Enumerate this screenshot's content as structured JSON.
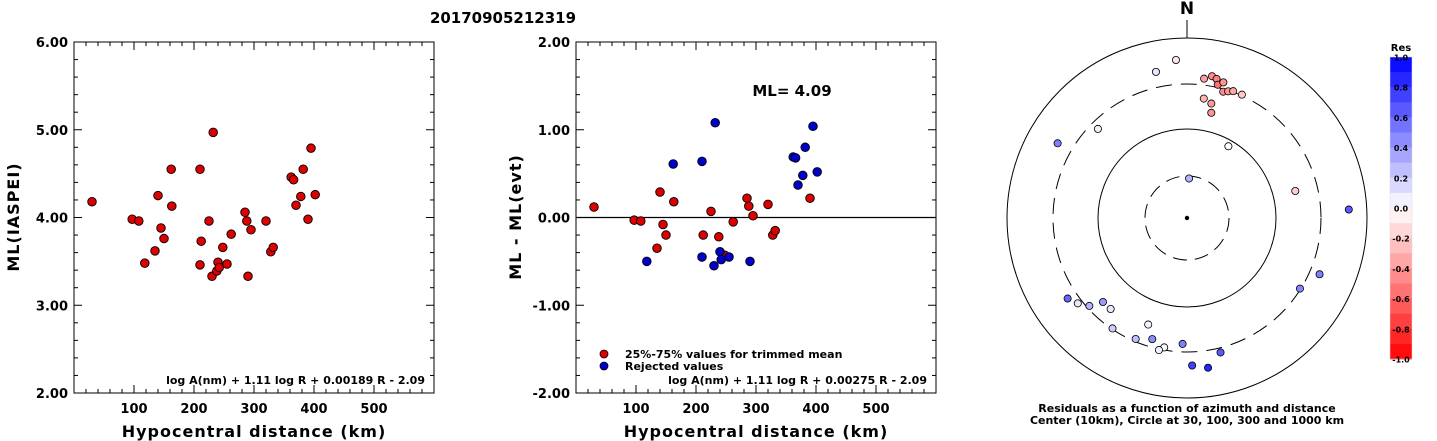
{
  "title": "20170905212319",
  "chart_data": [
    {
      "type": "scatter",
      "xlabel": "Hypocentral distance (km)",
      "ylabel": "ML(IASPEI)",
      "xlim": [
        0,
        600
      ],
      "ylim": [
        2.0,
        6.0
      ],
      "xticks": [
        "100",
        "200",
        "300",
        "400",
        "500"
      ],
      "yticks": [
        "2.00",
        "3.00",
        "4.00",
        "5.00",
        "6.00"
      ],
      "formula": "log A(nm) + 1.11 log R + 0.00189 R - 2.09",
      "series": [
        {
          "color": "#dd0000",
          "points": [
            [
              30,
              4.18
            ],
            [
              97,
              3.98
            ],
            [
              108,
              3.96
            ],
            [
              118,
              3.48
            ],
            [
              135,
              3.62
            ],
            [
              140,
              4.25
            ],
            [
              145,
              3.88
            ],
            [
              150,
              3.76
            ],
            [
              162,
              4.55
            ],
            [
              163,
              4.13
            ],
            [
              210,
              4.55
            ],
            [
              212,
              3.73
            ],
            [
              210,
              3.46
            ],
            [
              225,
              3.96
            ],
            [
              232,
              4.97
            ],
            [
              230,
              3.33
            ],
            [
              238,
              3.39
            ],
            [
              240,
              3.49
            ],
            [
              242,
              3.43
            ],
            [
              248,
              3.66
            ],
            [
              255,
              3.47
            ],
            [
              262,
              3.81
            ],
            [
              285,
              4.06
            ],
            [
              288,
              3.96
            ],
            [
              290,
              3.33
            ],
            [
              295,
              3.86
            ],
            [
              320,
              3.96
            ],
            [
              328,
              3.61
            ],
            [
              332,
              3.66
            ],
            [
              362,
              4.46
            ],
            [
              366,
              4.43
            ],
            [
              370,
              4.14
            ],
            [
              378,
              4.24
            ],
            [
              382,
              4.55
            ],
            [
              390,
              3.98
            ],
            [
              395,
              4.79
            ],
            [
              402,
              4.26
            ]
          ]
        }
      ]
    },
    {
      "type": "scatter",
      "xlabel": "Hypocentral distance (km)",
      "ylabel": "ML - ML(evt)",
      "xlim": [
        0,
        600
      ],
      "ylim": [
        -2.0,
        2.0
      ],
      "xticks": [
        "100",
        "200",
        "300",
        "400",
        "500"
      ],
      "yticks": [
        "-2.00",
        "-1.00",
        "0.00",
        "1.00",
        "2.00"
      ],
      "annotation": "ML= 4.09",
      "formula": "log A(nm) + 1.11 log R + 0.00275 R - 2.09",
      "legend": [
        {
          "color": "#dd0000",
          "label": "25%-75% values for trimmed mean"
        },
        {
          "color": "#0000cc",
          "label": "Rejected values"
        }
      ],
      "series": [
        {
          "color": "#dd0000",
          "points": [
            [
              30,
              0.12
            ],
            [
              97,
              -0.03
            ],
            [
              108,
              -0.04
            ],
            [
              135,
              -0.35
            ],
            [
              140,
              0.29
            ],
            [
              145,
              -0.08
            ],
            [
              150,
              -0.2
            ],
            [
              163,
              0.18
            ],
            [
              212,
              -0.2
            ],
            [
              225,
              0.07
            ],
            [
              238,
              -0.22
            ],
            [
              248,
              -0.43
            ],
            [
              262,
              -0.05
            ],
            [
              285,
              0.22
            ],
            [
              288,
              0.13
            ],
            [
              295,
              0.02
            ],
            [
              320,
              0.15
            ],
            [
              328,
              -0.2
            ],
            [
              332,
              -0.15
            ],
            [
              390,
              0.22
            ]
          ]
        },
        {
          "color": "#0000cc",
          "points": [
            [
              118,
              -0.5
            ],
            [
              162,
              0.61
            ],
            [
              210,
              0.64
            ],
            [
              210,
              -0.45
            ],
            [
              230,
              -0.55
            ],
            [
              232,
              1.08
            ],
            [
              240,
              -0.39
            ],
            [
              242,
              -0.48
            ],
            [
              255,
              -0.45
            ],
            [
              290,
              -0.5
            ],
            [
              362,
              0.69
            ],
            [
              366,
              0.68
            ],
            [
              370,
              0.37
            ],
            [
              378,
              0.48
            ],
            [
              382,
              0.8
            ],
            [
              395,
              1.04
            ],
            [
              402,
              0.52
            ]
          ]
        }
      ]
    },
    {
      "type": "polar",
      "north_label": "N",
      "caption_line1": "Residuals as a function of azimuth and distance",
      "caption_line2": "Center (10km), Circle at 30, 100, 300 and 1000 km",
      "colorbar_title": "Res",
      "colorbar_ticks": [
        "1.0",
        "0.8",
        "0.6",
        "0.4",
        "0.2",
        "0.0",
        "-0.2",
        "-0.4",
        "-0.6",
        "-0.8",
        "-1.0"
      ],
      "points": [
        {
          "az": 356,
          "r": 0.88,
          "res": -0.1
        },
        {
          "az": 348,
          "r": 0.83,
          "res": 0.1
        },
        {
          "az": 315,
          "r": 0.7,
          "res": 0.05
        },
        {
          "az": 300,
          "r": 0.83,
          "res": 0.5
        },
        {
          "az": 7,
          "r": 0.78,
          "res": -0.38
        },
        {
          "az": 10,
          "r": 0.8,
          "res": -0.45
        },
        {
          "az": 12,
          "r": 0.79,
          "res": -0.5
        },
        {
          "az": 13,
          "r": 0.76,
          "res": -0.55
        },
        {
          "az": 15,
          "r": 0.78,
          "res": -0.42
        },
        {
          "az": 16,
          "r": 0.73,
          "res": -0.45
        },
        {
          "az": 18,
          "r": 0.74,
          "res": -0.4
        },
        {
          "az": 20,
          "r": 0.75,
          "res": -0.35
        },
        {
          "az": 24,
          "r": 0.75,
          "res": -0.22
        },
        {
          "az": 8,
          "r": 0.67,
          "res": -0.3
        },
        {
          "az": 12,
          "r": 0.65,
          "res": -0.4
        },
        {
          "az": 13,
          "r": 0.6,
          "res": -0.42
        },
        {
          "az": 30,
          "r": 0.46,
          "res": 0.0
        },
        {
          "az": 76,
          "r": 0.62,
          "res": -0.2
        },
        {
          "az": 87,
          "r": 0.9,
          "res": 0.65
        },
        {
          "az": 113,
          "r": 0.8,
          "res": 0.5
        },
        {
          "az": 122,
          "r": 0.74,
          "res": 0.48
        },
        {
          "az": 166,
          "r": 0.77,
          "res": 0.65
        },
        {
          "az": 172,
          "r": 0.84,
          "res": 0.85
        },
        {
          "az": 178,
          "r": 0.82,
          "res": 0.75
        },
        {
          "az": 182,
          "r": 0.7,
          "res": 0.5
        },
        {
          "az": 190,
          "r": 0.73,
          "res": 0.02
        },
        {
          "az": 192,
          "r": 0.75,
          "res": 0.05
        },
        {
          "az": 196,
          "r": 0.7,
          "res": 0.45
        },
        {
          "az": 203,
          "r": 0.73,
          "res": 0.25
        },
        {
          "az": 200,
          "r": 0.63,
          "res": 0.05
        },
        {
          "az": 214,
          "r": 0.74,
          "res": 0.2
        },
        {
          "az": 220,
          "r": 0.66,
          "res": 0.1
        },
        {
          "az": 225,
          "r": 0.66,
          "res": 0.4
        },
        {
          "az": 228,
          "r": 0.73,
          "res": 0.3
        },
        {
          "az": 232,
          "r": 0.77,
          "res": 0.1
        },
        {
          "az": 236,
          "r": 0.8,
          "res": 0.6
        },
        {
          "az": 3,
          "r": 0.22,
          "res": 0.3
        }
      ]
    }
  ]
}
